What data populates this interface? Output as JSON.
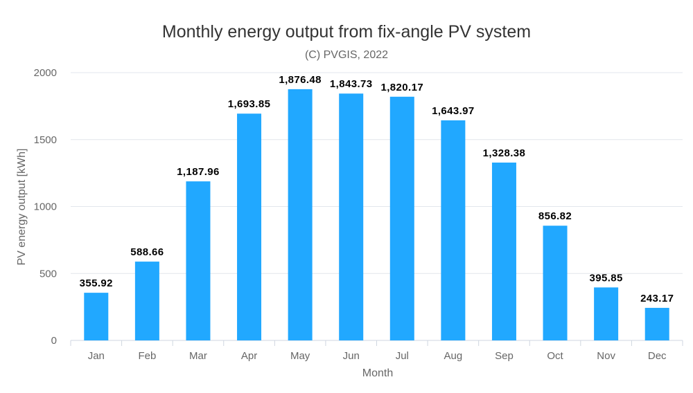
{
  "chart_data": {
    "type": "bar",
    "title": "Monthly energy output from fix-angle PV system",
    "subtitle": "(C) PVGIS, 2022",
    "xlabel": "Month",
    "ylabel": "PV energy output [kWh]",
    "ylim": [
      0,
      2000
    ],
    "yticks": [
      0,
      500,
      1000,
      1500,
      2000
    ],
    "grid": true,
    "bar_color": "#21a8ff",
    "categories": [
      "Jan",
      "Feb",
      "Mar",
      "Apr",
      "May",
      "Jun",
      "Jul",
      "Aug",
      "Sep",
      "Oct",
      "Nov",
      "Dec"
    ],
    "values": [
      355.92,
      588.66,
      1187.96,
      1693.85,
      1876.48,
      1843.73,
      1820.17,
      1643.97,
      1328.38,
      856.82,
      395.85,
      243.17
    ],
    "data_labels": [
      "355.92",
      "588.66",
      "1,187.96",
      "1,693.85",
      "1,876.48",
      "1,843.73",
      "1,820.17",
      "1,643.97",
      "1,328.38",
      "856.82",
      "395.85",
      "243.17"
    ]
  }
}
